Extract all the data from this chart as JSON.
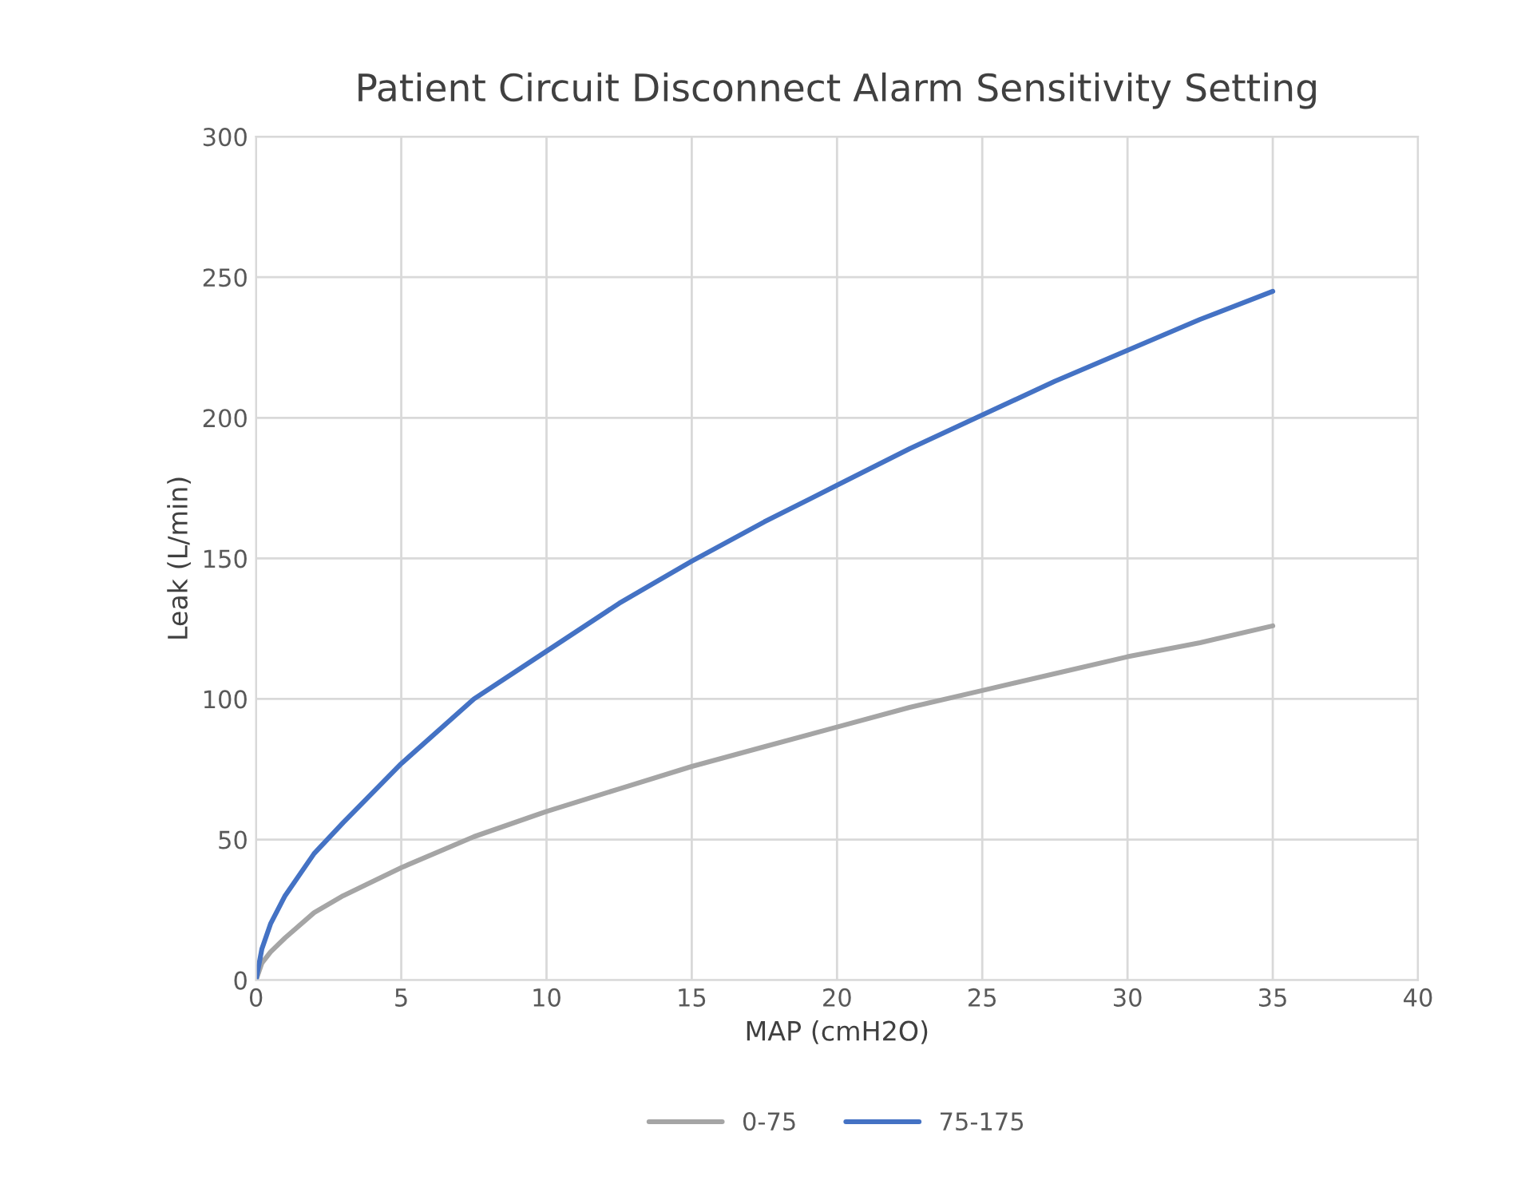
{
  "chart_data": {
    "type": "line",
    "title": "Patient Circuit Disconnect Alarm Sensitivity Setting",
    "xlabel": "MAP (cmH2O)",
    "ylabel": "Leak (L/min)",
    "x": [
      0,
      0.2,
      0.5,
      1,
      2,
      3,
      5,
      7.5,
      10,
      12.5,
      15,
      17.5,
      20,
      22.5,
      25,
      27.5,
      30,
      32.5,
      35
    ],
    "series": [
      {
        "name": "0-75",
        "color": "#a5a5a5",
        "values": [
          0,
          6,
          10,
          15,
          24,
          30,
          40,
          51,
          60,
          68,
          76,
          83,
          90,
          97,
          103,
          109,
          115,
          120,
          126
        ]
      },
      {
        "name": "75-175",
        "color": "#4472c4",
        "values": [
          0,
          11,
          20,
          30,
          45,
          56,
          77,
          100,
          117,
          134,
          149,
          163,
          176,
          189,
          201,
          213,
          224,
          235,
          245
        ]
      }
    ],
    "xlim": [
      0,
      40
    ],
    "xticks": [
      0,
      5,
      10,
      15,
      20,
      25,
      30,
      35,
      40
    ],
    "ylim": [
      0,
      300
    ],
    "yticks": [
      0,
      50,
      100,
      150,
      200,
      250,
      300
    ],
    "grid": true,
    "legend": "bottom",
    "marker": "none",
    "line_style": "solid"
  }
}
